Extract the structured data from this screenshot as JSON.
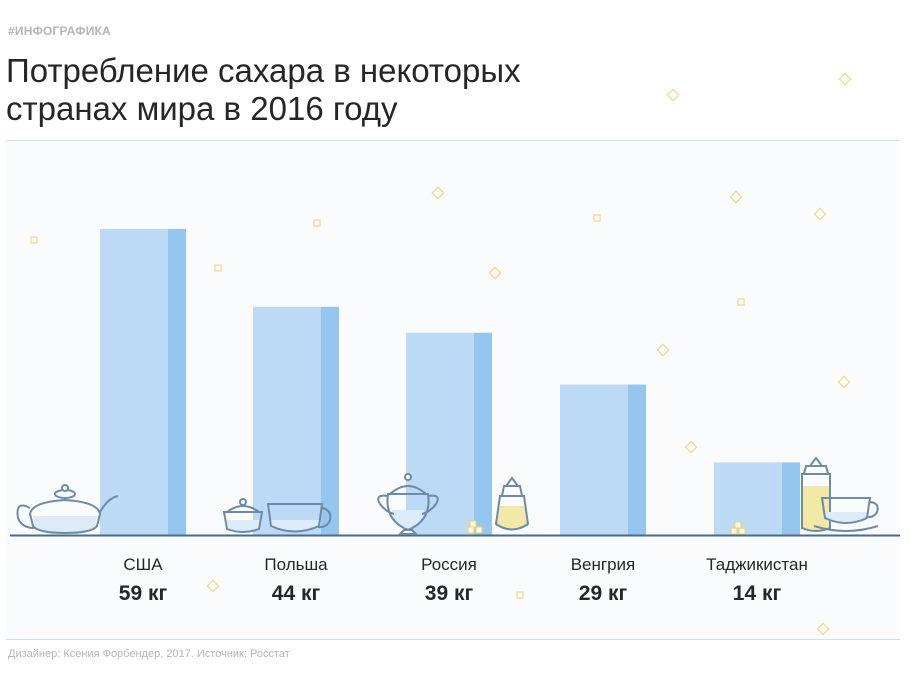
{
  "tag": "#ИНФОГРАФИКА",
  "title_line1": "Потребление сахара в некоторых",
  "title_line2": "странах мира в 2016 году",
  "credit": "Дизайнер: Ксения Форбендер, 2017. Источник: Росстат",
  "colors": {
    "bar_front": "#bcdaf5",
    "bar_side": "#95c6ef",
    "baseline": "#4a6c8c",
    "text": "#262626",
    "muted": "#b5b5b5",
    "sugar": "#f3e9a6",
    "dish_stroke": "#6d8aa8",
    "dish_fill": "#ffffff",
    "liquid": "#dcebf8"
  },
  "chart_data": {
    "type": "bar",
    "title": "Потребление сахара в некоторых странах мира в 2016 году",
    "categories": [
      "США",
      "Польша",
      "Россия",
      "Венгрия",
      "Таджикистан"
    ],
    "values": [
      59,
      44,
      39,
      29,
      14
    ],
    "value_labels": [
      "59 кг",
      "44 кг",
      "39 кг",
      "29 кг",
      "14 кг"
    ],
    "unit": "кг",
    "ylim": [
      0,
      59
    ],
    "grid": false,
    "legend": "none"
  },
  "icons": [
    "teapot-icon",
    "sugar-bowl-icon",
    "tea-cup-icon",
    "cream-jug-icon",
    "sugar-dispenser-icon",
    "sugar-cubes-icon",
    "sugar-dispenser-icon",
    "cup-and-saucer-icon",
    "sugar-cubes-icon"
  ]
}
